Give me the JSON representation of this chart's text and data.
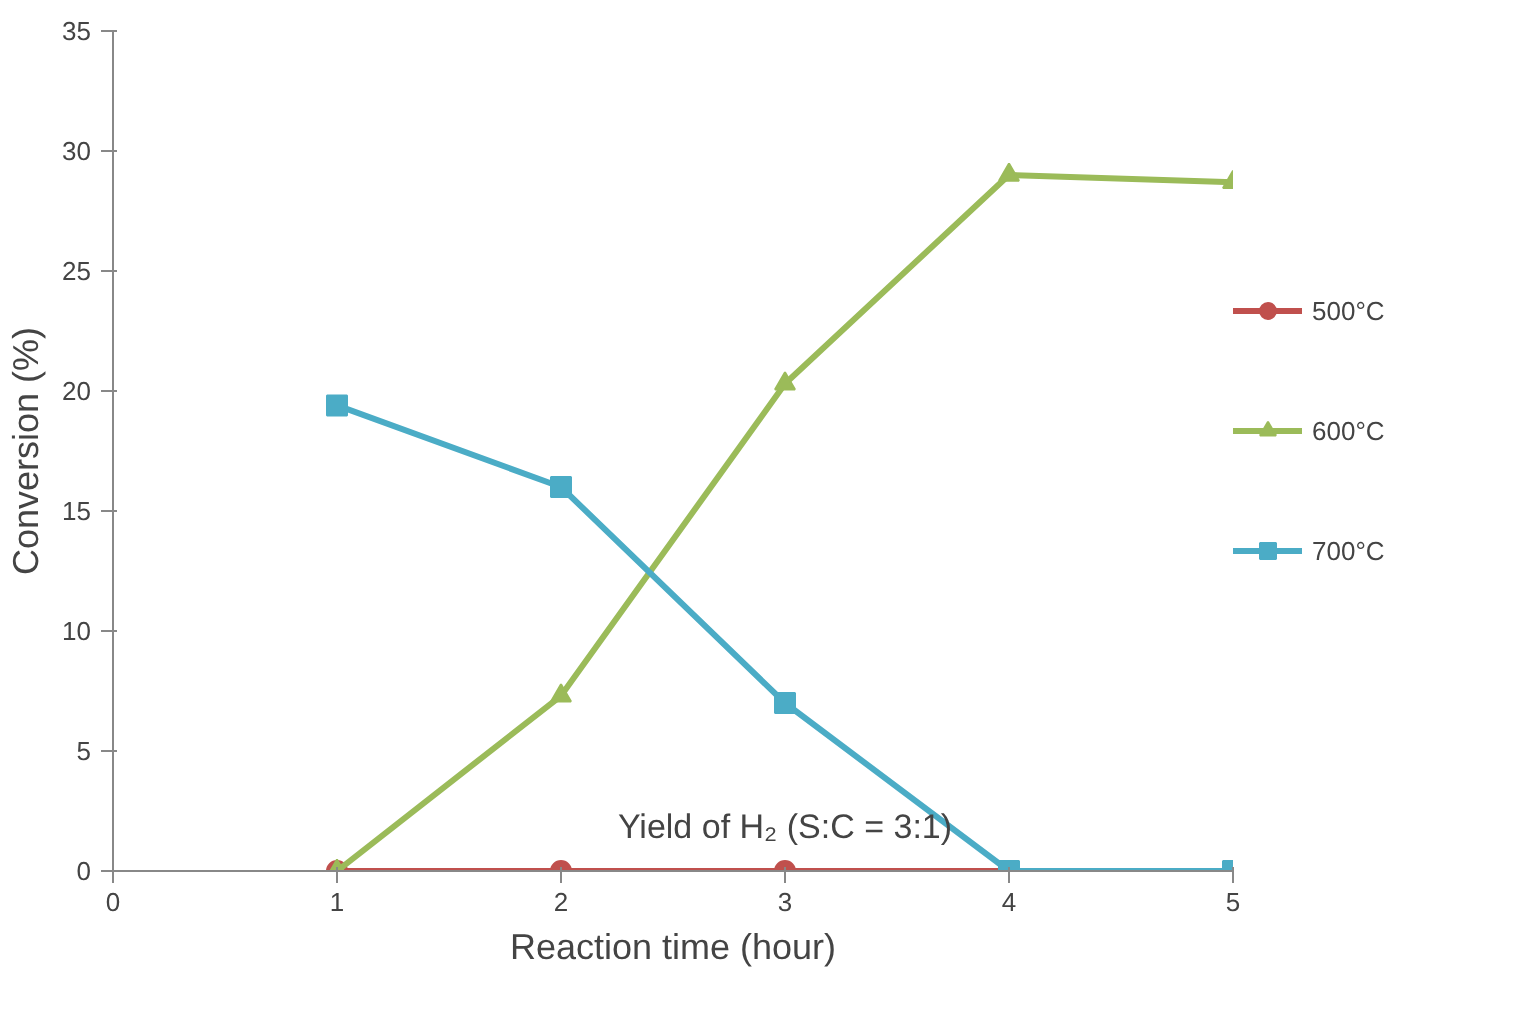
{
  "chart_data": {
    "type": "line",
    "xlabel": "Reaction time (hour)",
    "ylabel": "Conversion (%)",
    "x": [
      1,
      2,
      3,
      4,
      5
    ],
    "xlim": [
      0,
      5
    ],
    "xticks": [
      0,
      1,
      2,
      3,
      4,
      5
    ],
    "ylim": [
      0,
      35
    ],
    "yticks": [
      0,
      5,
      10,
      15,
      20,
      25,
      30,
      35
    ],
    "grid": false,
    "legend": "right",
    "line_style": "solid",
    "annotations": [
      "Yield of H₂ (S:C = 3:1)"
    ],
    "series": [
      {
        "name": "500°C",
        "color": "#c0504d",
        "marker": "circle",
        "values": [
          0,
          0,
          0,
          0,
          0
        ]
      },
      {
        "name": "600°C",
        "color": "#9bbb59",
        "marker": "triangle",
        "values": [
          0,
          7.3,
          20.3,
          29.0,
          28.7
        ]
      },
      {
        "name": "700°C",
        "color": "#4bacc6",
        "marker": "square",
        "values": [
          19.4,
          16.0,
          7.0,
          0,
          0
        ]
      }
    ]
  }
}
